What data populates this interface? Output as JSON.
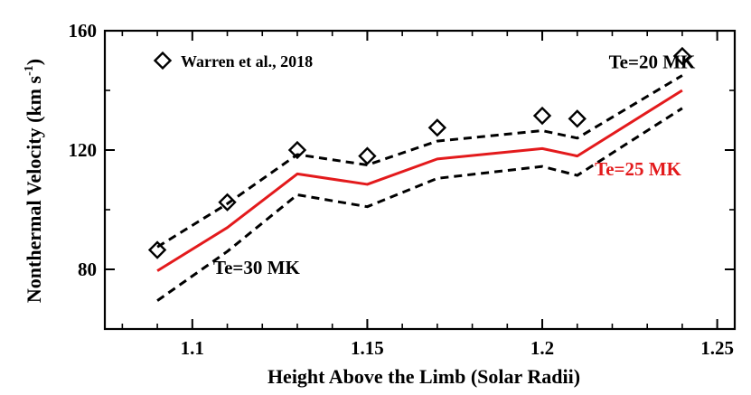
{
  "chart_data": {
    "type": "line",
    "title": "",
    "xlabel": "Height Above the Limb (Solar Radii)",
    "ylabel": "Nonthermal Velocity (km s",
    "ylabel_sup": "-1",
    "ylabel_close": ")",
    "xlim": [
      1.075,
      1.255
    ],
    "ylim": [
      60,
      160
    ],
    "x_ticks": [
      1.1,
      1.15,
      1.2,
      1.25
    ],
    "x_tick_labels": [
      "1.1",
      "1.15",
      "1.2",
      "1.25"
    ],
    "x_minor_step": 0.01,
    "y_ticks": [
      80,
      120,
      160
    ],
    "y_tick_labels": [
      "80",
      "120",
      "160"
    ],
    "y_minor_step": 20,
    "grid": false,
    "series": [
      {
        "name": "Te=20 MK",
        "style": "dashed",
        "color": "#000000",
        "x": [
          1.09,
          1.11,
          1.13,
          1.15,
          1.17,
          1.2,
          1.21,
          1.24
        ],
        "values": [
          87.5,
          102,
          118.5,
          115,
          123,
          126.5,
          124,
          145
        ],
        "label_pos": [
          1.219,
          147.5
        ]
      },
      {
        "name": "Te=25 MK",
        "style": "solid",
        "color": "#e31a1c",
        "x": [
          1.09,
          1.11,
          1.13,
          1.15,
          1.17,
          1.2,
          1.21,
          1.24
        ],
        "values": [
          79.5,
          94,
          112,
          108.5,
          117,
          120.5,
          118,
          140
        ],
        "label_pos": [
          1.215,
          111.5
        ]
      },
      {
        "name": "Te=30 MK",
        "style": "dashed",
        "color": "#000000",
        "x": [
          1.09,
          1.11,
          1.13,
          1.15,
          1.17,
          1.2,
          1.21,
          1.24
        ],
        "values": [
          69.5,
          86,
          105,
          101,
          110.5,
          114.5,
          111.5,
          134
        ],
        "label_pos": [
          1.106,
          78.5
        ]
      },
      {
        "name": "Warren et al., 2018",
        "style": "markers",
        "marker": "diamond",
        "color": "#000000",
        "x": [
          1.09,
          1.11,
          1.13,
          1.15,
          1.17,
          1.2,
          1.21,
          1.24
        ],
        "values": [
          86.5,
          102.5,
          120,
          118,
          127.5,
          131.5,
          130.5,
          151.5
        ]
      }
    ],
    "legend": {
      "position": "top-left",
      "entries": [
        "Warren et al., 2018"
      ]
    }
  }
}
